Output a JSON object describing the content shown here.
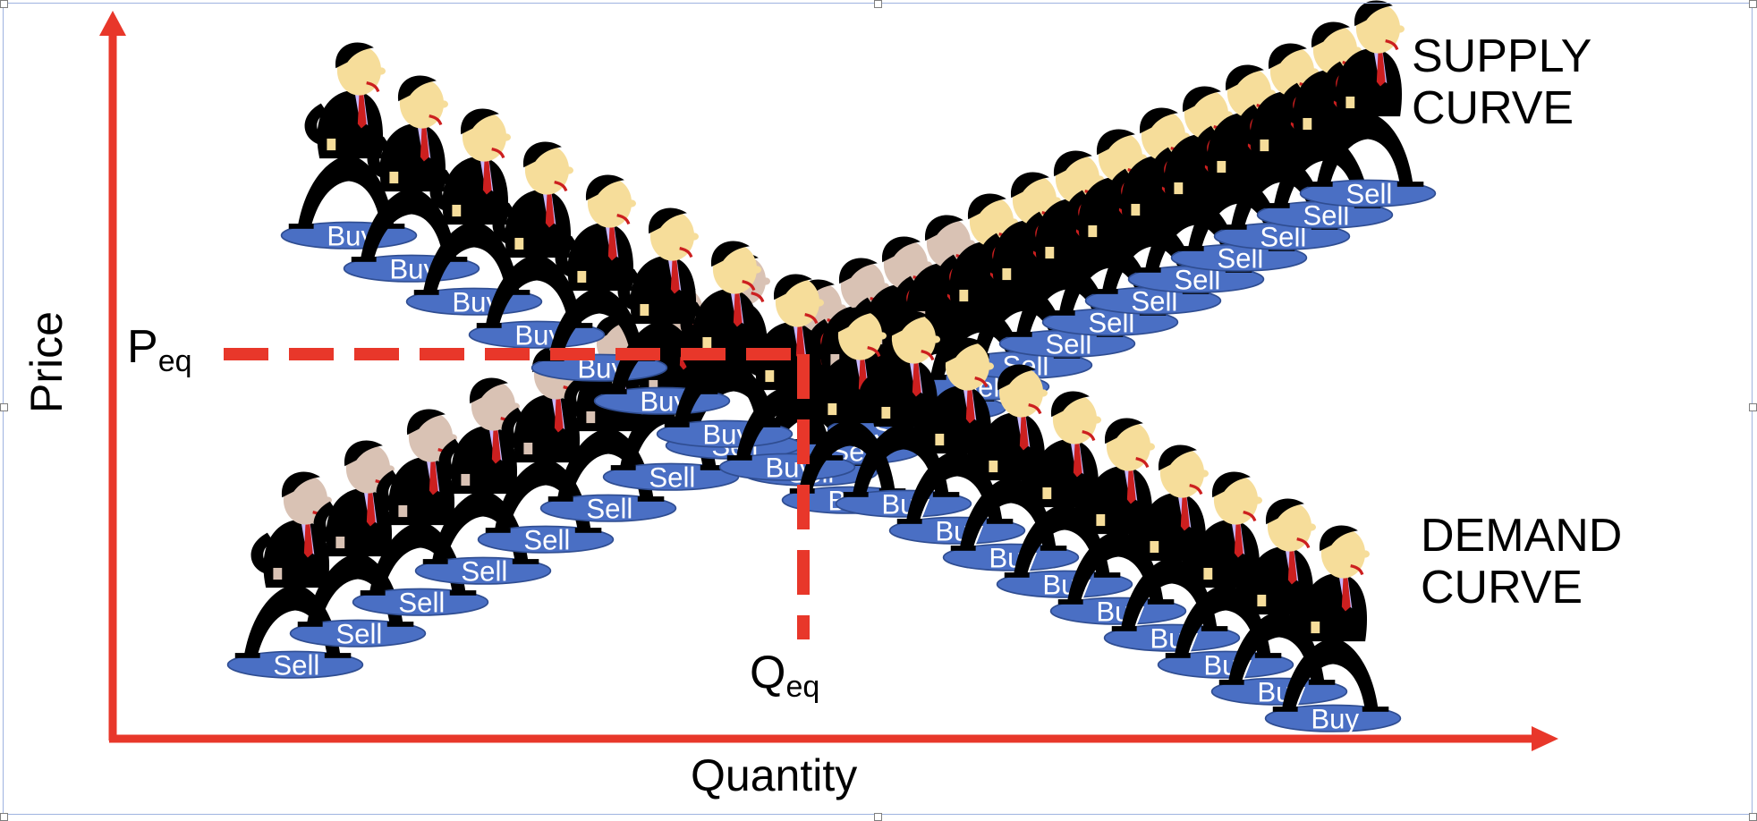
{
  "diagram": {
    "supply_label_line1": "SUPPLY",
    "supply_label_line2": "CURVE",
    "demand_label_line1": "DEMAND",
    "demand_label_line2": "CURVE",
    "y_axis_label": "Price",
    "x_axis_label": "Quantity",
    "p_eq_main": "P",
    "p_eq_sub": "eq",
    "q_eq_main": "Q",
    "q_eq_sub": "eq",
    "sell_tag": "Sell",
    "buy_tag": "Buy"
  },
  "colors": {
    "axis": "#e8372a",
    "dashed": "#e8372a",
    "pad": "#4a6fc4",
    "suit": "#000000",
    "skin": "#f6dd9a",
    "skin_shadow": "#d9c2b4",
    "tie": "#cc1f1f",
    "shirt": "#c8b8ff"
  }
}
